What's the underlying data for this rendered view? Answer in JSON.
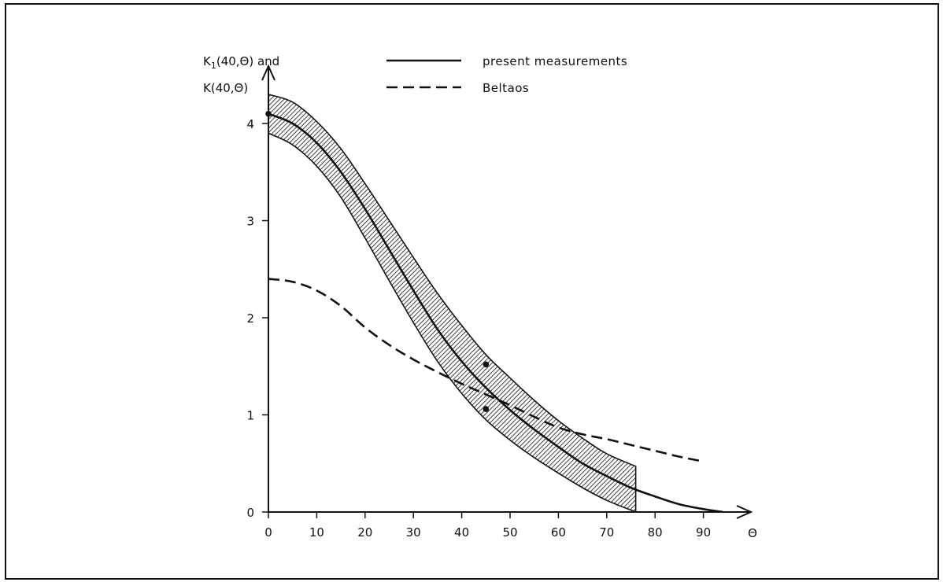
{
  "chart_data": {
    "type": "line",
    "title": "",
    "xlabel": "Θ",
    "ylabel_line1_main": "K",
    "ylabel_line1_sub": "1",
    "ylabel_line1_rest": "(40,Θ) and",
    "ylabel_line2": "K(40,Θ)",
    "xlim": [
      0,
      98
    ],
    "ylim": [
      0,
      4.5
    ],
    "x_ticks": [
      0,
      10,
      20,
      30,
      40,
      50,
      60,
      70,
      80,
      90
    ],
    "y_ticks": [
      0,
      1,
      2,
      3,
      4
    ],
    "legend_position": "top",
    "series": [
      {
        "name": "present measurements",
        "style": "solid",
        "x": [
          0,
          5,
          10,
          15,
          20,
          25,
          30,
          35,
          40,
          45,
          50,
          55,
          60,
          65,
          70,
          75,
          80,
          85,
          90,
          94
        ],
        "y": [
          4.1,
          4.0,
          3.8,
          3.5,
          3.12,
          2.7,
          2.28,
          1.88,
          1.55,
          1.28,
          1.05,
          0.85,
          0.67,
          0.5,
          0.37,
          0.25,
          0.16,
          0.08,
          0.03,
          0.0
        ]
      },
      {
        "name": "Beltaos",
        "style": "dashed",
        "x": [
          0,
          5,
          10,
          15,
          20,
          25,
          30,
          35,
          40,
          45,
          50,
          55,
          60,
          65,
          70,
          75,
          80,
          85,
          90
        ],
        "y": [
          2.4,
          2.37,
          2.28,
          2.12,
          1.9,
          1.72,
          1.57,
          1.44,
          1.32,
          1.21,
          1.1,
          0.98,
          0.87,
          0.8,
          0.75,
          0.69,
          0.63,
          0.57,
          0.52
        ]
      }
    ],
    "band": {
      "x": [
        0,
        5,
        10,
        15,
        20,
        25,
        30,
        35,
        40,
        45,
        50,
        55,
        60,
        65,
        70,
        76
      ],
      "upper": [
        4.3,
        4.22,
        4.02,
        3.74,
        3.38,
        3.0,
        2.62,
        2.25,
        1.92,
        1.62,
        1.38,
        1.15,
        0.94,
        0.76,
        0.6,
        0.47
      ],
      "lower": [
        3.9,
        3.78,
        3.56,
        3.24,
        2.82,
        2.38,
        1.95,
        1.55,
        1.22,
        0.95,
        0.74,
        0.56,
        0.4,
        0.25,
        0.12,
        0.0
      ]
    },
    "points": [
      {
        "x": 0,
        "y": 4.1
      },
      {
        "x": 45,
        "y": 1.52
      },
      {
        "x": 45,
        "y": 1.06
      }
    ]
  }
}
